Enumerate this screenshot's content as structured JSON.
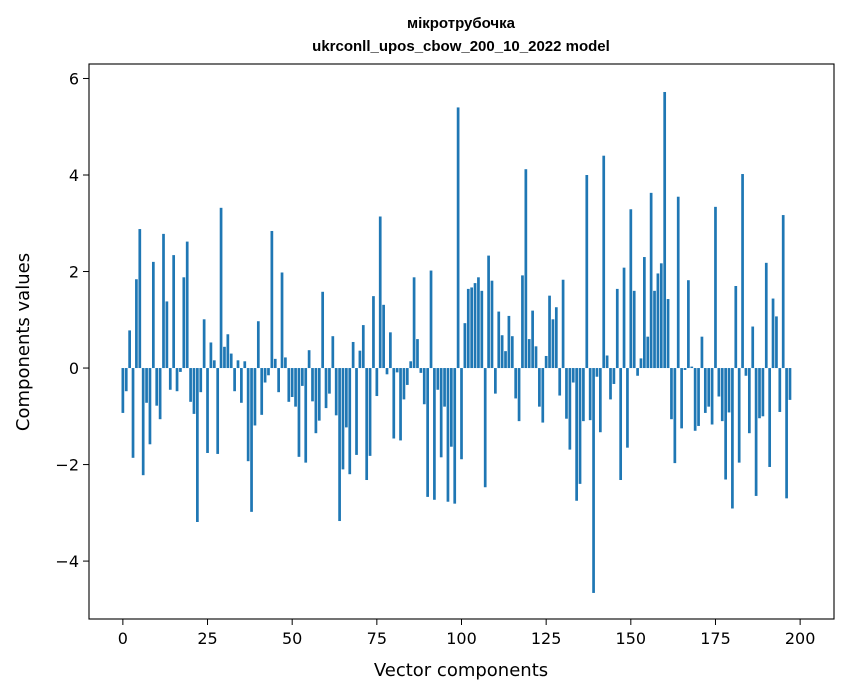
{
  "chart_data": {
    "type": "bar",
    "title": "мікротрубочка",
    "subtitle": "ukrconll_upos_cbow_200_10_2022 model",
    "xlabel": "Vector components",
    "ylabel": "Components values",
    "xlim": [
      -10,
      210
    ],
    "ylim": [
      -5.2,
      6.3
    ],
    "xticks": [
      0,
      25,
      50,
      75,
      100,
      125,
      150,
      175,
      200
    ],
    "yticks": [
      -4,
      -2,
      0,
      2,
      4,
      6
    ],
    "bar_color": "#1f77b4",
    "grid": false,
    "values": [
      -0.93,
      -0.48,
      0.78,
      -1.86,
      1.84,
      2.88,
      -2.22,
      -0.72,
      -1.58,
      2.2,
      -0.78,
      -1.06,
      2.78,
      1.38,
      -0.45,
      2.34,
      -0.48,
      -0.08,
      1.88,
      2.62,
      -0.7,
      -0.95,
      -3.19,
      -0.5,
      1.01,
      -1.76,
      0.53,
      0.16,
      -1.78,
      3.32,
      0.44,
      0.7,
      0.3,
      -0.48,
      0.16,
      -0.72,
      0.14,
      -1.93,
      -2.98,
      -1.19,
      0.97,
      -0.97,
      -0.3,
      -0.15,
      2.84,
      0.19,
      -0.5,
      1.98,
      0.22,
      -0.7,
      -0.6,
      -0.8,
      -1.84,
      -0.37,
      -1.96,
      0.37,
      -0.69,
      -1.35,
      -1.09,
      1.58,
      -0.83,
      -0.53,
      0.66,
      -0.98,
      -3.17,
      -2.1,
      -1.23,
      -2.2,
      0.54,
      -1.8,
      0.36,
      0.89,
      -2.32,
      -1.82,
      1.49,
      -0.58,
      3.14,
      1.31,
      -0.13,
      0.74,
      -1.46,
      -0.09,
      -1.5,
      -0.65,
      -0.35,
      0.14,
      1.88,
      0.6,
      -0.1,
      -0.75,
      -2.67,
      2.02,
      -2.73,
      -0.45,
      -1.85,
      -0.8,
      -2.77,
      -1.63,
      -2.81,
      5.4,
      -1.89,
      0.93,
      1.64,
      1.67,
      1.76,
      1.88,
      1.6,
      -2.47,
      2.33,
      1.81,
      -0.53,
      1.17,
      0.68,
      0.35,
      1.08,
      0.66,
      -0.63,
      -1.1,
      1.92,
      4.12,
      0.6,
      1.19,
      0.45,
      -0.8,
      -1.13,
      0.25,
      1.5,
      1.01,
      1.26,
      -0.57,
      1.83,
      -1.05,
      -1.69,
      -0.3,
      -2.75,
      -2.4,
      -1.1,
      4.0,
      -1.08,
      -4.66,
      -0.18,
      -1.33,
      4.4,
      0.26,
      -0.65,
      -0.33,
      1.64,
      -2.32,
      2.08,
      -1.65,
      3.29,
      1.6,
      -0.16,
      0.2,
      2.3,
      0.65,
      3.63,
      1.6,
      1.96,
      2.17,
      5.72,
      1.43,
      -1.06,
      -1.97,
      3.55,
      -1.25,
      -0.04,
      1.82,
      0.03,
      -1.3,
      -1.2,
      0.65,
      -0.93,
      -0.8,
      -1.17,
      3.34,
      -0.59,
      -1.1,
      -2.31,
      -0.92,
      -2.91,
      1.7,
      -1.96,
      4.02,
      -0.16,
      -1.35,
      0.86,
      -2.65,
      -1.04,
      -1.0,
      2.18,
      -2.05,
      1.44,
      1.07,
      -0.91,
      3.17,
      -2.7,
      -0.66
    ]
  }
}
